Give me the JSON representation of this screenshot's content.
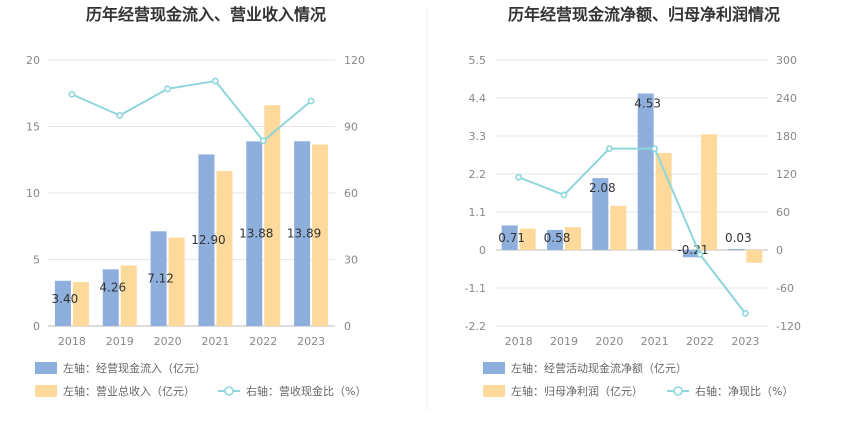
{
  "chart_data": [
    {
      "type": "bar",
      "title": "历年经营现金流入、营业收入情况",
      "categories": [
        "2018",
        "2019",
        "2020",
        "2021",
        "2022",
        "2023"
      ],
      "left_axis": {
        "ylim": [
          0,
          20
        ],
        "ticks": [
          "0",
          "5",
          "10",
          "15",
          "20"
        ]
      },
      "right_axis": {
        "ylim": [
          0,
          120
        ],
        "ticks": [
          "0",
          "30",
          "60",
          "90",
          "120"
        ]
      },
      "series": [
        {
          "name": "左轴：经营现金流入（亿元）",
          "kind": "bar",
          "axis": "left",
          "color": "#8eaedc",
          "values": [
            3.4,
            4.26,
            7.12,
            12.9,
            13.88,
            13.89
          ],
          "labels": [
            "3.40",
            "4.26",
            "7.12",
            "12.90",
            "13.88",
            "13.89"
          ]
        },
        {
          "name": "左轴：营业总收入（亿元）",
          "kind": "bar",
          "axis": "left",
          "color": "#fdd99b",
          "values": [
            3.3,
            4.55,
            6.65,
            11.65,
            16.6,
            13.65
          ]
        },
        {
          "name": "右轴：营收现金比（%）",
          "kind": "line",
          "axis": "right",
          "color": "#8fd6dc",
          "values": [
            104.5,
            95.0,
            107.0,
            110.5,
            83.5,
            101.5
          ]
        }
      ],
      "grid": true,
      "legend_position": "bottom-left"
    },
    {
      "type": "bar",
      "title": "历年经营现金流净额、归母净利润情况",
      "categories": [
        "2018",
        "2019",
        "2020",
        "2021",
        "2022",
        "2023"
      ],
      "left_axis": {
        "ylim": [
          -2.2,
          5.5
        ],
        "ticks": [
          "-2.2",
          "-1.1",
          "0",
          "1.1",
          "2.2",
          "3.3",
          "4.4",
          "5.5"
        ]
      },
      "right_axis": {
        "ylim": [
          -120,
          300
        ],
        "ticks": [
          "-120",
          "-60",
          "0",
          "60",
          "120",
          "180",
          "240",
          "300"
        ]
      },
      "series": [
        {
          "name": "左轴：经营活动现金流净额（亿元）",
          "kind": "bar",
          "axis": "left",
          "color": "#8eaedc",
          "values": [
            0.71,
            0.58,
            2.08,
            4.53,
            -0.21,
            0.03
          ],
          "labels": [
            "0.71",
            "0.58",
            "2.08",
            "4.53",
            "-0.21",
            "0.03"
          ]
        },
        {
          "name": "左轴：归母净利润（亿元）",
          "kind": "bar",
          "axis": "left",
          "color": "#fdd99b",
          "values": [
            0.62,
            0.66,
            1.28,
            2.81,
            3.35,
            -0.37
          ]
        },
        {
          "name": "右轴：净现比（%）",
          "kind": "line",
          "axis": "right",
          "color": "#8fd6dc",
          "values": [
            115,
            87,
            160,
            160,
            -7,
            -100
          ]
        }
      ],
      "grid": true,
      "legend_position": "bottom-left"
    }
  ]
}
